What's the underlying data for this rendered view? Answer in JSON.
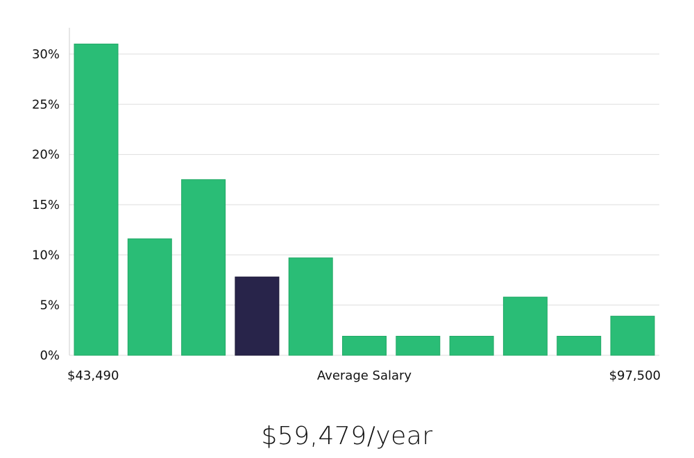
{
  "chart_data": {
    "type": "bar",
    "title": "",
    "xlabel": "Average Salary",
    "ylabel": "",
    "x_range_labels": {
      "min": "$43,490",
      "max": "$97,500"
    },
    "ylim": [
      0,
      32
    ],
    "yticks": [
      0,
      5,
      10,
      15,
      20,
      25,
      30
    ],
    "ytick_labels": [
      "0%",
      "5%",
      "10%",
      "15%",
      "20%",
      "25%",
      "30%"
    ],
    "grid": true,
    "legend": "none",
    "values": [
      31,
      11.6,
      17.5,
      7.8,
      9.7,
      1.9,
      1.9,
      1.9,
      5.8,
      1.9,
      3.9
    ],
    "highlight_index": 3,
    "colors": {
      "bar": "#2abd76",
      "highlight": "#28244a",
      "grid": "#dddddd",
      "axis": "#cccccc"
    }
  },
  "headline": {
    "salary": "$59,479/year"
  }
}
